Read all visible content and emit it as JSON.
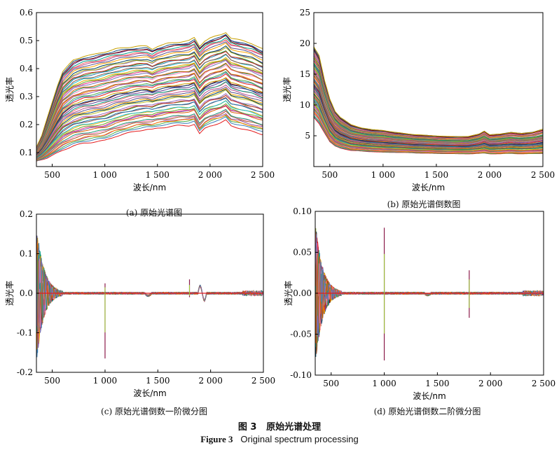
{
  "figure": {
    "caption_cn_num": "图 3",
    "caption_cn_text": "原始光谱处理",
    "caption_en_num": "Figure 3",
    "caption_en_text": "Original spectrum processing"
  },
  "chart_data": [
    {
      "id": "a",
      "type": "line",
      "caption": "(a) 原始光谱图",
      "xlabel": "波长/nm",
      "ylabel": "透光率",
      "xlim": [
        350,
        2500
      ],
      "ylim": [
        0.05,
        0.6
      ],
      "xticks": [
        500,
        1000,
        1500,
        2000,
        2500
      ],
      "xticklabels": [
        "500",
        "1 000",
        "1 500",
        "2 000",
        "2 500"
      ],
      "yticks": [
        0.1,
        0.2,
        0.3,
        0.4,
        0.5,
        0.6
      ],
      "yticklabels": [
        "0.1",
        "0.2",
        "0.3",
        "0.4",
        "0.5",
        "0.6"
      ],
      "series_count": 60,
      "envelope": {
        "x": [
          350,
          400,
          450,
          500,
          550,
          600,
          700,
          800,
          900,
          1000,
          1100,
          1200,
          1300,
          1400,
          1450,
          1500,
          1600,
          1700,
          1800,
          1850,
          1900,
          1950,
          2000,
          2100,
          2150,
          2200,
          2300,
          2400,
          2500
        ],
        "upper": [
          0.12,
          0.16,
          0.22,
          0.28,
          0.34,
          0.39,
          0.43,
          0.445,
          0.45,
          0.46,
          0.47,
          0.475,
          0.48,
          0.48,
          0.47,
          0.48,
          0.49,
          0.495,
          0.5,
          0.51,
          0.48,
          0.5,
          0.51,
          0.52,
          0.53,
          0.51,
          0.5,
          0.49,
          0.47
        ],
        "lower": [
          0.07,
          0.075,
          0.08,
          0.09,
          0.1,
          0.11,
          0.125,
          0.135,
          0.14,
          0.145,
          0.16,
          0.17,
          0.18,
          0.185,
          0.185,
          0.19,
          0.195,
          0.2,
          0.2,
          0.205,
          0.17,
          0.19,
          0.2,
          0.21,
          0.22,
          0.2,
          0.19,
          0.18,
          0.17
        ]
      }
    },
    {
      "id": "b",
      "type": "line",
      "caption": "(b) 原始光谱倒数图",
      "xlabel": "波长/nm",
      "ylabel": "透光率",
      "xlim": [
        350,
        2500
      ],
      "ylim": [
        0,
        25
      ],
      "xticks": [
        500,
        1000,
        1500,
        2000,
        2500
      ],
      "xticklabels": [
        "500",
        "1 000",
        "1 500",
        "2 000",
        "2 500"
      ],
      "yticks": [
        5,
        10,
        15,
        20,
        25
      ],
      "yticklabels": [
        "5",
        "10",
        "15",
        "20",
        "25"
      ],
      "series_count": 60,
      "envelope": {
        "x": [
          350,
          400,
          450,
          500,
          550,
          600,
          700,
          800,
          900,
          1000,
          1100,
          1200,
          1300,
          1400,
          1500,
          1600,
          1700,
          1800,
          1900,
          1950,
          2000,
          2100,
          2200,
          2300,
          2400,
          2500
        ],
        "upper": [
          19.5,
          18,
          14,
          11,
          9,
          8,
          6.8,
          6.3,
          6,
          5.9,
          5.6,
          5.4,
          5.2,
          5.1,
          5,
          4.9,
          4.9,
          4.9,
          5.3,
          5.8,
          5.2,
          5.3,
          5.6,
          5.4,
          5.6,
          6.1
        ],
        "lower": [
          8,
          7,
          5.5,
          4,
          3.3,
          3,
          2.6,
          2.5,
          2.4,
          2.3,
          2.3,
          2.25,
          2.2,
          2.15,
          2.1,
          2.1,
          2.05,
          2.05,
          2.1,
          2.15,
          2.05,
          2.05,
          2.1,
          2.05,
          2.05,
          2.1
        ]
      }
    },
    {
      "id": "c",
      "type": "line",
      "caption": "(c) 原始光谱倒数一阶微分图",
      "xlabel": "波长/nm",
      "ylabel": "透光率",
      "xlim": [
        350,
        2500
      ],
      "ylim": [
        -0.2,
        0.2
      ],
      "xticks": [
        500,
        1000,
        1500,
        2000,
        2500
      ],
      "xticklabels": [
        "500",
        "1 000",
        "1 500",
        "2 000",
        "2 500"
      ],
      "yticks": [
        -0.2,
        -0.1,
        0.0,
        0.1,
        0.2
      ],
      "yticklabels": [
        "-0.2",
        "-0.1",
        "0.0",
        "0.1",
        "0.2"
      ],
      "series_count": 40,
      "spikes": [
        {
          "x": 1000,
          "top": 0.025,
          "bottom": -0.165
        },
        {
          "x": 1800,
          "top": 0.035,
          "bottom": -0.01
        }
      ]
    },
    {
      "id": "d",
      "type": "line",
      "caption": "(d) 原始光谱倒数二阶微分图",
      "xlabel": "波长/nm",
      "ylabel": "透光率",
      "xlim": [
        350,
        2500
      ],
      "ylim": [
        -0.1,
        0.1
      ],
      "xticks": [
        500,
        1000,
        1500,
        2000,
        2500
      ],
      "xticklabels": [
        "500",
        "1 000",
        "1 500",
        "2 000",
        "2 500"
      ],
      "yticks": [
        -0.1,
        -0.05,
        0.0,
        0.05,
        0.1
      ],
      "yticklabels": [
        "-0.10",
        "-0.05",
        "0.00",
        "0.05",
        "0.10"
      ],
      "series_count": 40,
      "spikes": [
        {
          "x": 1000,
          "top": 0.08,
          "bottom": -0.082
        },
        {
          "x": 1800,
          "top": 0.028,
          "bottom": -0.03
        }
      ]
    }
  ]
}
